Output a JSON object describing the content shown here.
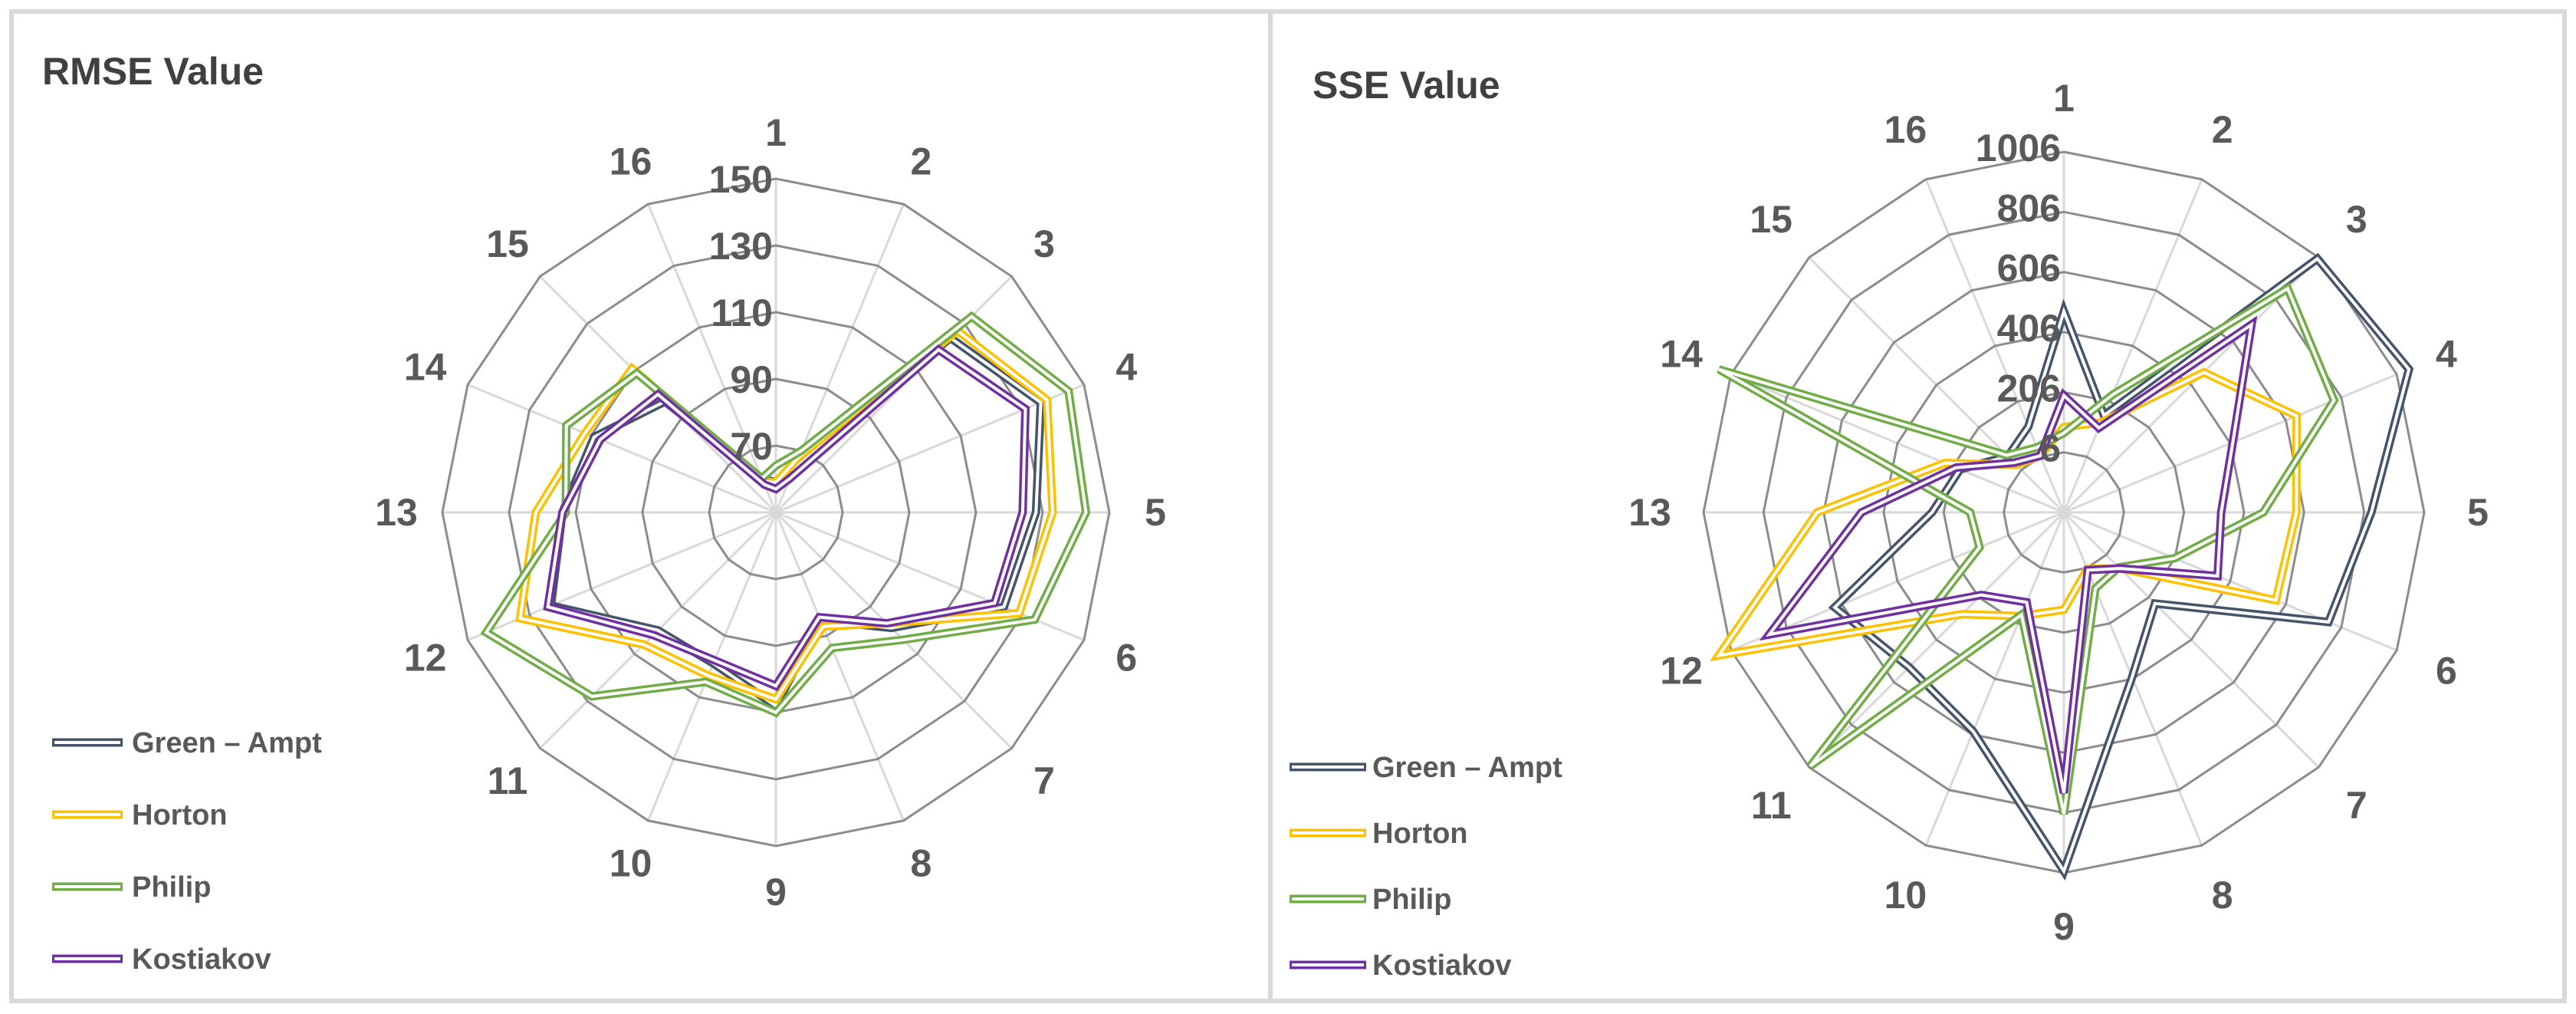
{
  "series_meta": [
    {
      "name": "Green – Ampt",
      "color": "#44546a"
    },
    {
      "name": "Horton",
      "color": "#ffc000"
    },
    {
      "name": "Philip",
      "color": "#70ad47"
    },
    {
      "name": "Kostiakov",
      "color": "#7030a0"
    }
  ],
  "chart_data": [
    {
      "type": "radar",
      "title": "RMSE Value",
      "categories": [
        "1",
        "2",
        "3",
        "4",
        "5",
        "6",
        "7",
        "8",
        "9",
        "10",
        "11",
        "12",
        "13",
        "14",
        "15",
        "16"
      ],
      "axis_min": 50,
      "axis_max": 150,
      "ticks": [
        70,
        90,
        110,
        130,
        150
      ],
      "tick_labels": [
        "70",
        "90",
        "110",
        "130",
        "150"
      ],
      "legend_position": "bottom-left",
      "series": [
        {
          "name": "Green – Ampt",
          "values": [
            59,
            64,
            124,
            136,
            128,
            124,
            99,
            85,
            108,
            99,
            100,
            123,
            114,
            109,
            97,
            61
          ]
        },
        {
          "name": "Horton",
          "values": [
            59,
            68,
            127,
            138,
            133,
            129,
            97,
            87,
            106,
            103,
            106,
            133,
            122,
            112,
            111,
            60
          ]
        },
        {
          "name": "Philip",
          "values": [
            64,
            70,
            133,
            145,
            143,
            134,
            104,
            94,
            110,
            105,
            128,
            144,
            113,
            118,
            109,
            61
          ]
        },
        {
          "name": "Kostiakov",
          "values": [
            57,
            61,
            119,
            131,
            124,
            121,
            97,
            84,
            102,
            98,
            102,
            124,
            114,
            107,
            100,
            59
          ]
        }
      ]
    },
    {
      "type": "radar",
      "title": "SSE Value",
      "categories": [
        "1",
        "2",
        "3",
        "4",
        "5",
        "6",
        "7",
        "8",
        "9",
        "10",
        "11",
        "12",
        "13",
        "14",
        "15",
        "16"
      ],
      "axis_min": -194,
      "axis_max": 1006,
      "ticks": [
        6,
        206,
        406,
        606,
        806,
        1006
      ],
      "tick_labels": [
        "6",
        "206",
        "406",
        "606",
        "806",
        "1006"
      ],
      "legend_position": "bottom-left",
      "series": [
        {
          "name": "Green – Ampt",
          "values": [
            475,
            155,
            1000,
            1050,
            830,
            760,
            235,
            400,
            1000,
            595,
            535,
            632,
            245,
            180,
            70,
            115
          ]
        },
        {
          "name": "Horton",
          "values": [
            90,
            130,
            465,
            645,
            580,
            570,
            70,
            10,
            130,
            180,
            285,
            1050,
            628,
            235,
            30,
            10
          ]
        },
        {
          "name": "Philip",
          "values": [
            70,
            230,
            860,
            780,
            470,
            205,
            65,
            80,
            810,
            175,
            1000,
            110,
            118,
            1050,
            75,
            40
          ]
        },
        {
          "name": "Kostiakov",
          "values": [
            195,
            110,
            690,
            415,
            330,
            360,
            70,
            14,
            740,
            130,
            195,
            868,
            480,
            195,
            40,
            10
          ]
        }
      ]
    }
  ]
}
